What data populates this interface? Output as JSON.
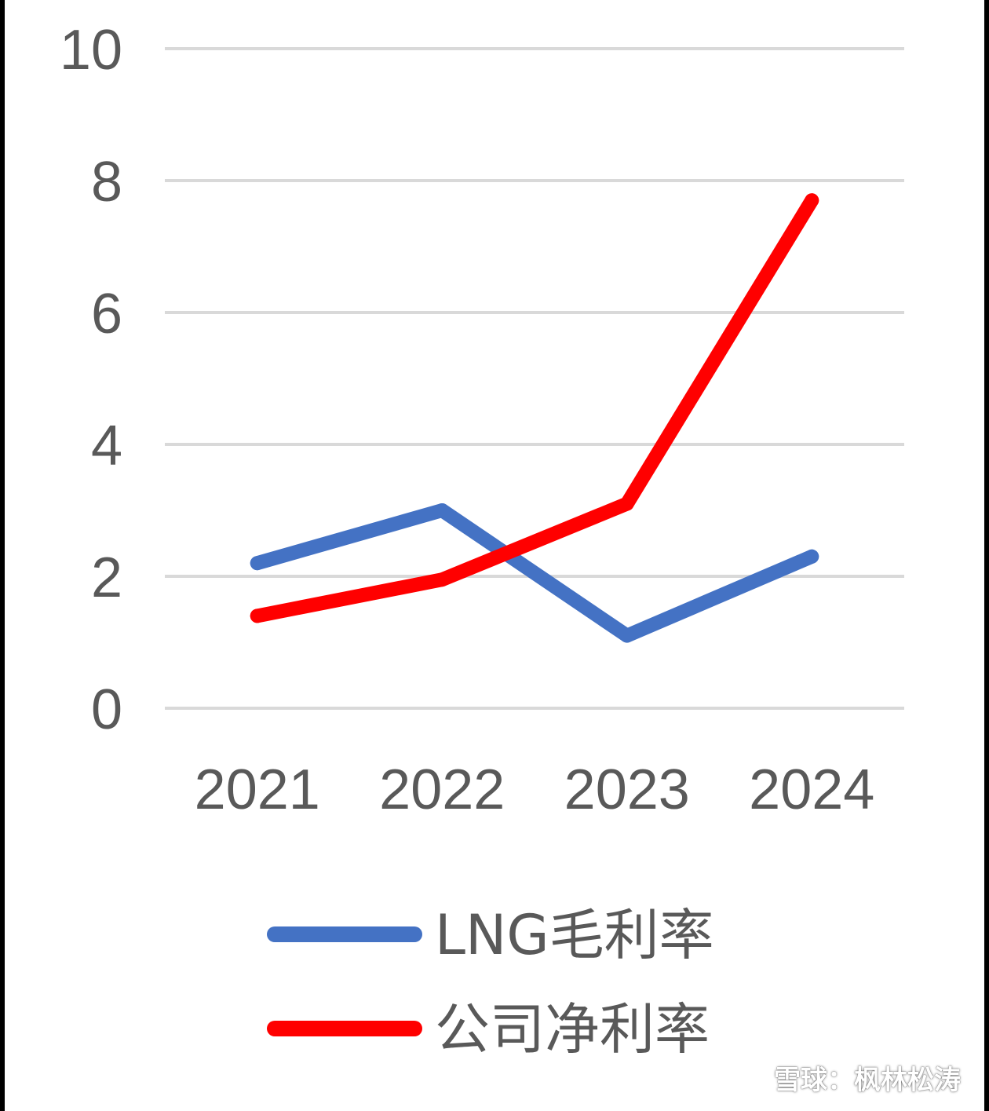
{
  "chart_data": {
    "type": "line",
    "title": "",
    "xlabel": "",
    "ylabel": "",
    "categories": [
      "2021",
      "2022",
      "2023",
      "2024"
    ],
    "ylim": [
      0,
      10
    ],
    "yticks": [
      "0",
      "2",
      "4",
      "6",
      "8",
      "10"
    ],
    "grid": true,
    "legend_position": "bottom",
    "series": [
      {
        "name": "LNG毛利率",
        "color": "#4472C4",
        "values": [
          2.2,
          3.0,
          1.1,
          2.3
        ]
      },
      {
        "name": "公司净利率",
        "color": "#FF0000",
        "values": [
          1.4,
          1.95,
          3.1,
          7.7
        ]
      }
    ]
  },
  "watermark": {
    "text": "雪球：枫林松涛",
    "icon": "xueqiu-logo-icon"
  }
}
